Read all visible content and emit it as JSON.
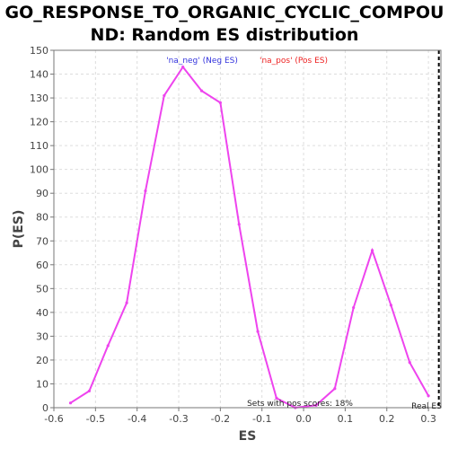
{
  "chart_data": {
    "type": "line",
    "title_line1": "GO_RESPONSE_TO_ORGANIC_CYCLIC_COMPOU",
    "title_line2": "ND: Random ES distribution",
    "xlabel": "ES",
    "ylabel": "P(ES)",
    "xlim": [
      -0.6,
      0.33
    ],
    "ylim": [
      0,
      150
    ],
    "x_ticks": [
      -0.6,
      -0.5,
      -0.4,
      -0.3,
      -0.2,
      -0.1,
      0.0,
      0.1,
      0.2,
      0.3
    ],
    "x_tick_labels": [
      "-0.6",
      "-0.5",
      "-0.4",
      "-0.3",
      "-0.2",
      "-0.1",
      "0.0",
      "0.1",
      "0.2",
      "0.3"
    ],
    "y_ticks": [
      0,
      10,
      20,
      30,
      40,
      50,
      60,
      70,
      80,
      90,
      100,
      110,
      120,
      130,
      140,
      150
    ],
    "y_tick_labels": [
      "0",
      "10",
      "20",
      "30",
      "40",
      "50",
      "60",
      "70",
      "80",
      "90",
      "100",
      "110",
      "120",
      "130",
      "140",
      "150"
    ],
    "grid": true,
    "series": [
      {
        "color": "#ee44ee",
        "x": [
          -0.56,
          -0.515,
          -0.47,
          -0.425,
          -0.38,
          -0.335,
          -0.29,
          -0.245,
          -0.2,
          -0.155,
          -0.11,
          -0.065,
          -0.02,
          0.03,
          0.075,
          0.12,
          0.165,
          0.21,
          0.255,
          0.3
        ],
        "y": [
          2,
          7,
          26,
          44,
          91,
          131,
          143,
          133,
          128,
          77,
          32,
          4,
          0,
          1,
          8,
          42,
          66,
          43,
          19,
          5
        ]
      }
    ],
    "legend": {
      "placement": "top-center",
      "neg_label": "'na_neg' (Neg ES)",
      "neg_color": "#3333dd",
      "pos_label": "'na_pos' (Pos ES)",
      "pos_color": "#ee2222"
    },
    "real_es": {
      "value": 0.325,
      "label": "Real ES",
      "color": "#000000"
    },
    "annotation": "Sets with pos scores: 18%"
  }
}
